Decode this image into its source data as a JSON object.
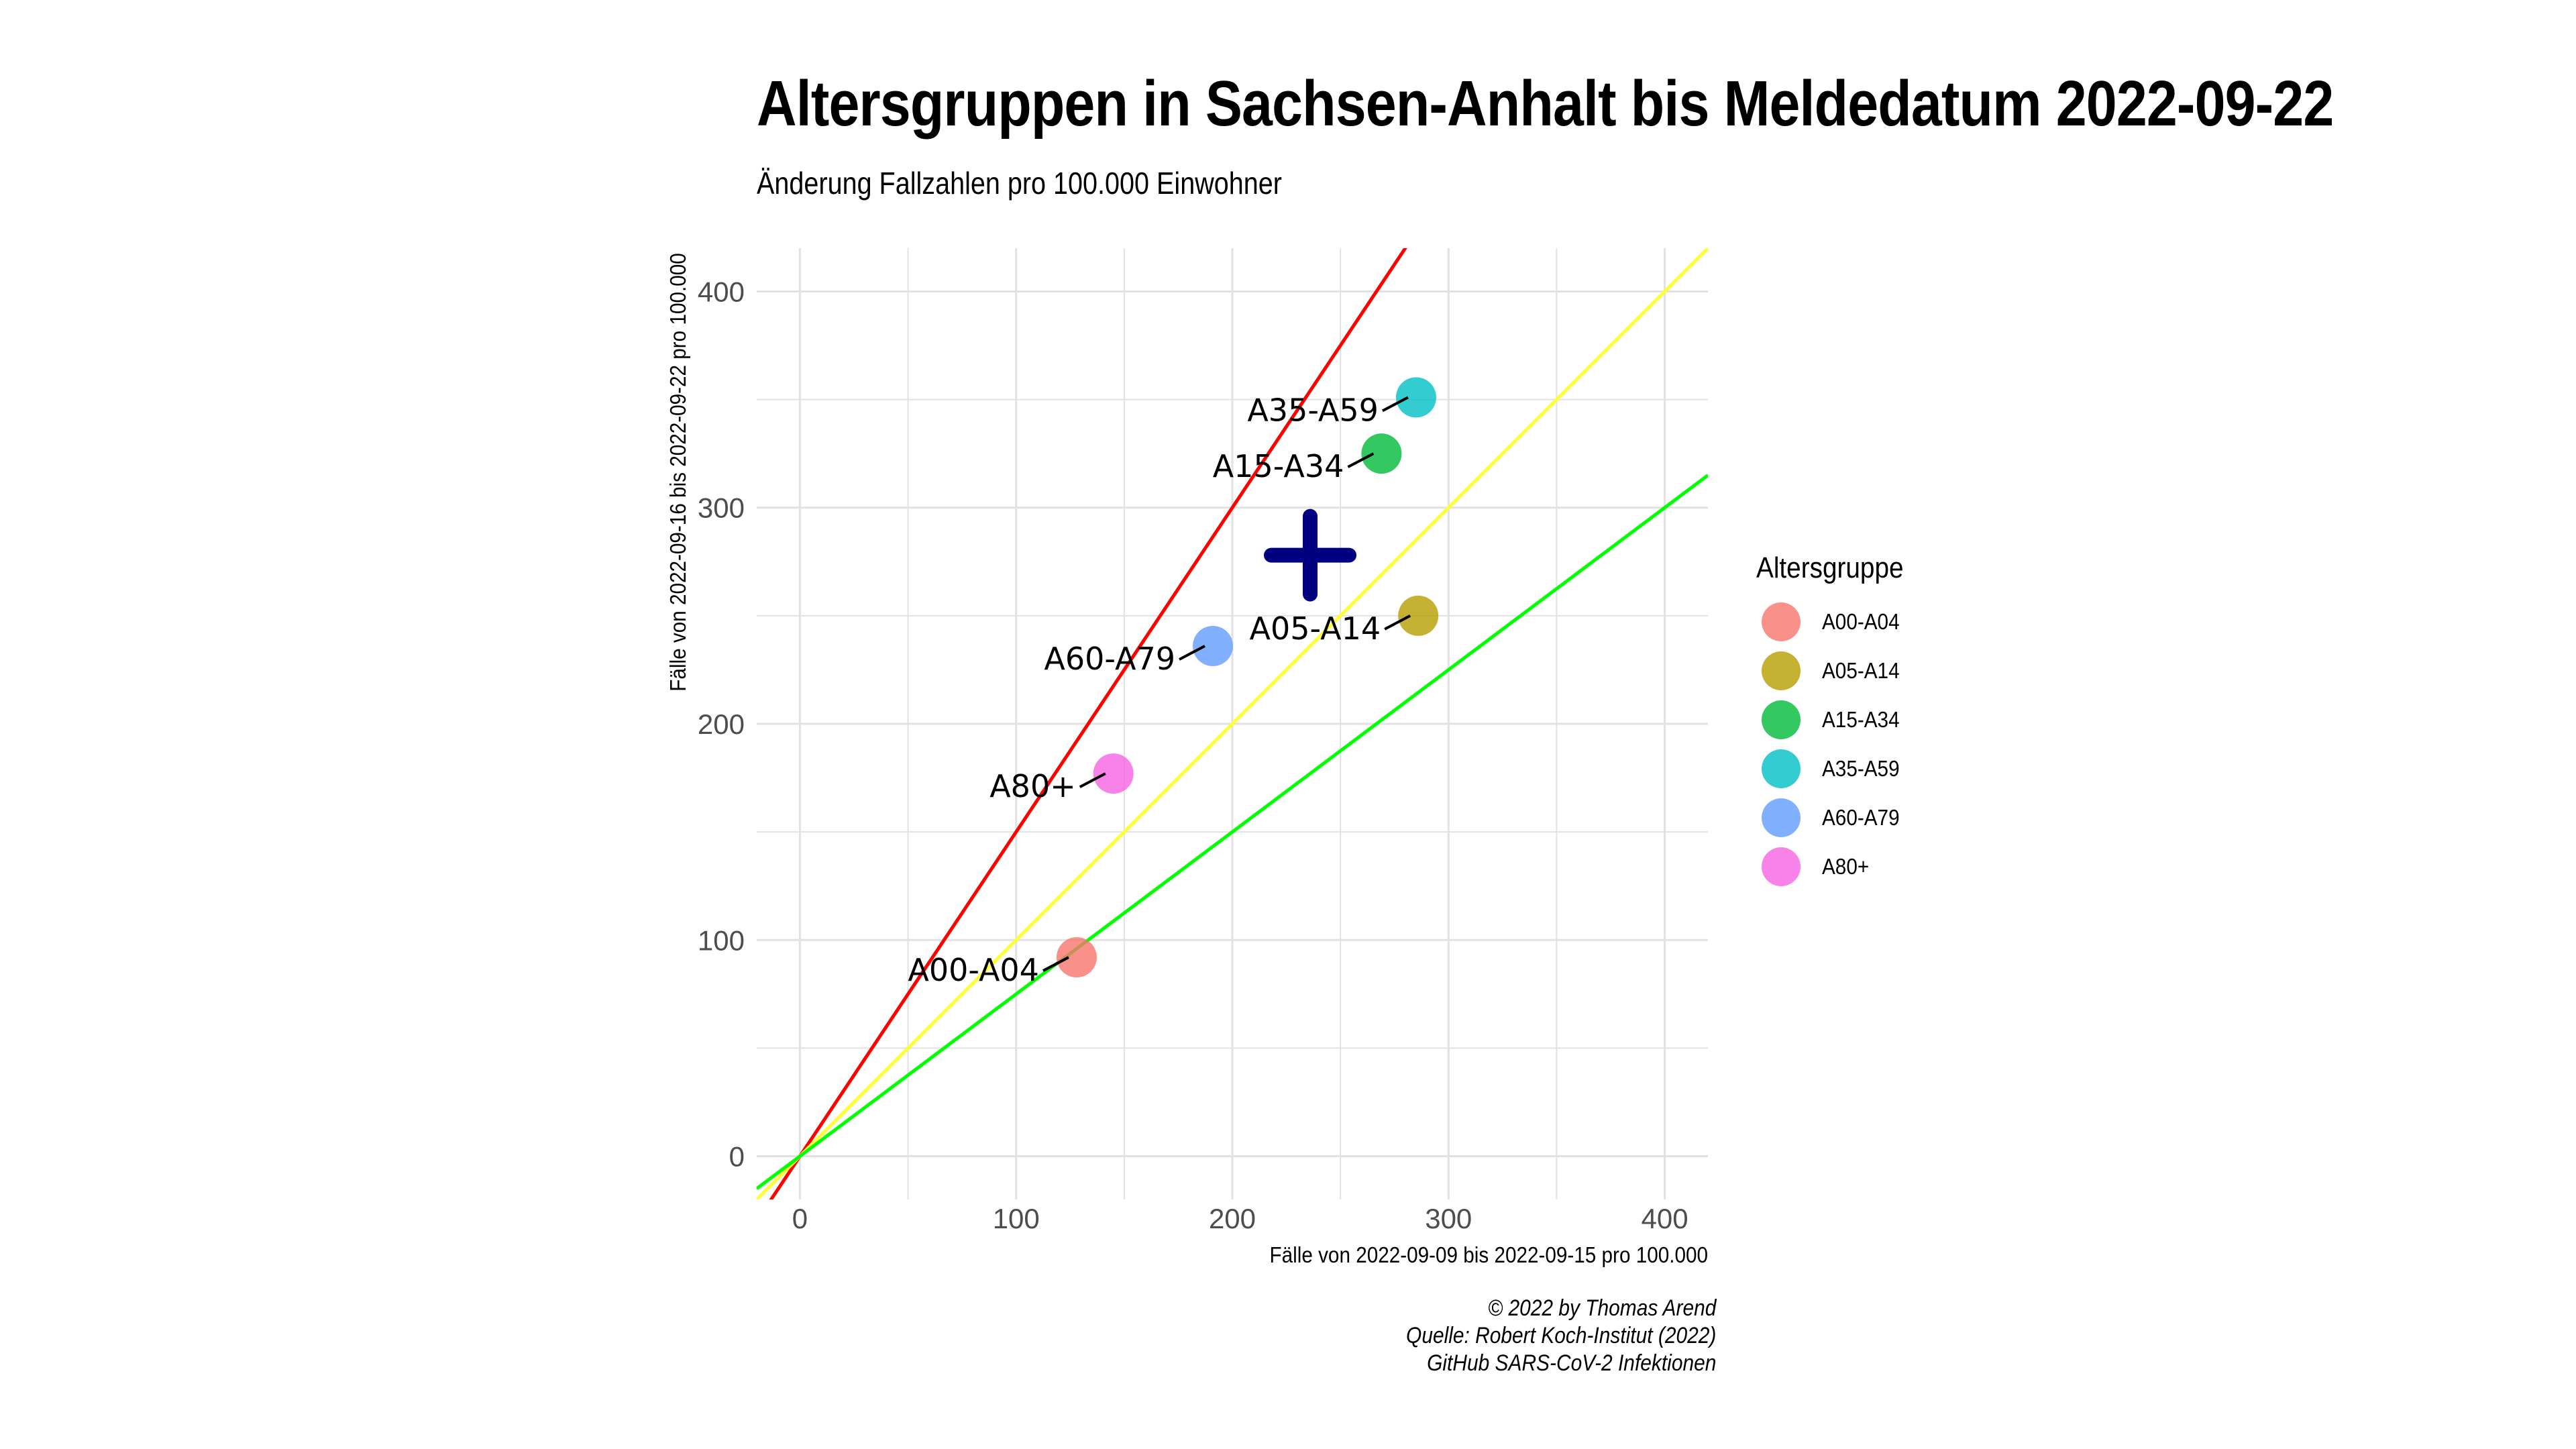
{
  "title": "Altersgruppen in Sachsen-Anhalt bis Meldedatum 2022-09-22",
  "subtitle": "Änderung Fallzahlen pro 100.000 Einwohner",
  "caption": [
    "© 2022 by Thomas Arend",
    "Quelle: Robert Koch-Institut (2022)",
    "GitHub SARS-CoV-2 Infektionen"
  ],
  "legend": {
    "title": "Altersgruppe"
  },
  "colors": {
    "grid": "#e2e2e2",
    "tick_text": "#4d4d4d",
    "line_red": "#ff0000",
    "line_yellow": "#ffff33",
    "line_green": "#00ff00",
    "cross": "#000080"
  },
  "chart_data": {
    "type": "scatter",
    "title": "Altersgruppen in Sachsen-Anhalt bis Meldedatum 2022-09-22",
    "subtitle": "Änderung Fallzahlen pro 100.000 Einwohner",
    "xlabel": "Fälle von 2022-09-09 bis 2022-09-15 pro 100.000",
    "ylabel": "Fälle von 2022-09-16 bis 2022-09-22 pro 100.000",
    "xlim": [
      -20,
      420
    ],
    "ylim": [
      -20,
      420
    ],
    "x_ticks": [
      0,
      100,
      200,
      300,
      400
    ],
    "y_ticks": [
      0,
      100,
      200,
      300,
      400
    ],
    "grid": true,
    "legend_position": "right",
    "points": [
      {
        "label": "A00-A04",
        "x": 128,
        "y": 92,
        "color": "#F8766D"
      },
      {
        "label": "A05-A14",
        "x": 286,
        "y": 250,
        "color": "#B79F00"
      },
      {
        "label": "A15-A34",
        "x": 269,
        "y": 325,
        "color": "#00BA38"
      },
      {
        "label": "A35-A59",
        "x": 285,
        "y": 351,
        "color": "#00BFC4"
      },
      {
        "label": "A60-A79",
        "x": 191,
        "y": 236,
        "color": "#619CFF"
      },
      {
        "label": "A80+",
        "x": 145,
        "y": 177,
        "color": "#F564E3"
      }
    ],
    "reference_lines": [
      {
        "slope": 1.5,
        "color": "#ff0000"
      },
      {
        "slope": 1.0,
        "color": "#ffff33"
      },
      {
        "slope": 0.75,
        "color": "#00ff00"
      }
    ],
    "mean_marker": {
      "x": 236,
      "y": 278
    }
  }
}
